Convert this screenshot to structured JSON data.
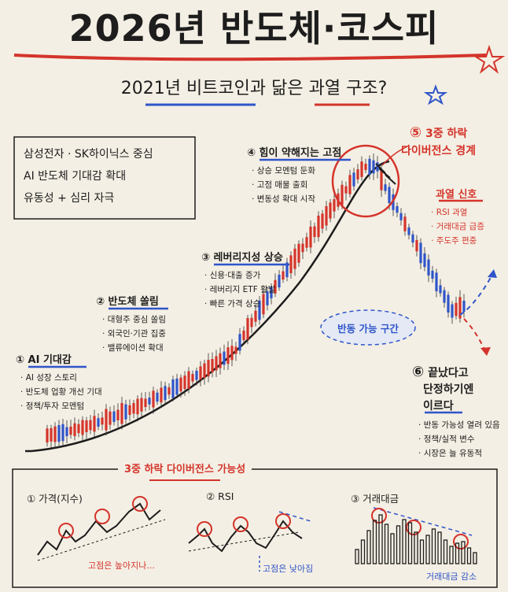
{
  "title": "2026년 반도체·코스피",
  "subtitle": "2021년 비트코인과 닮은 과열 구조?",
  "top_note": [
    "삼성전자 · SK하이닉스 중심",
    "AI 반도체 기대감 확대",
    "유동성 + 심리 자극"
  ],
  "stages": [
    {
      "num": "①",
      "title": "AI 기대감",
      "bullets": [
        "AI 성장 스토리",
        "반도체 업황 개선 기대",
        "정책/투자 모멘텀"
      ]
    },
    {
      "num": "②",
      "title": "반도체 쏠림",
      "bullets": [
        "대형주 중심 쏠림",
        "외국인·기관 집중",
        "밸류에이션 확대"
      ]
    },
    {
      "num": "③",
      "title": "레버리지성 상승",
      "bullets": [
        "신용·대출 증가",
        "레버리지 ETF 활발",
        "빠른 가격 상승"
      ]
    },
    {
      "num": "④",
      "title": "힘이 약해지는 고점",
      "bullets": [
        "상승 모멘텀 둔화",
        "고점 매물 출회",
        "변동성 확대 시작"
      ]
    },
    {
      "num": "⑤",
      "title": "3중 하락",
      "title2": "다이버전스 경계"
    },
    {
      "num": "⑥",
      "title": "끝났다고",
      "title2": "단정하기엔",
      "title3": "이르다",
      "bullets": [
        "반동 가능성 열려 있음",
        "정책/실적 변수",
        "시장은 늘 유동적"
      ]
    }
  ],
  "overheat": {
    "title": "과열 신호",
    "bullets": [
      "RSI 과열",
      "거래대금 급증",
      "주도주 편중"
    ]
  },
  "rebound_label": "반동 가능 구간",
  "bottom": {
    "heading": "3중 하락 다이버전스 가능성",
    "panels": [
      {
        "title": "① 가격(지수)",
        "note": "고점은 높아지나..."
      },
      {
        "title": "② RSI",
        "note": "고점은 낮아짐"
      },
      {
        "title": "③ 거래대금",
        "note": "거래대금 감소"
      }
    ]
  },
  "colors": {
    "up": "#d4342b",
    "down": "#2f55c9",
    "paper": "#f4efe4",
    "ink": "#1d1d1d"
  }
}
